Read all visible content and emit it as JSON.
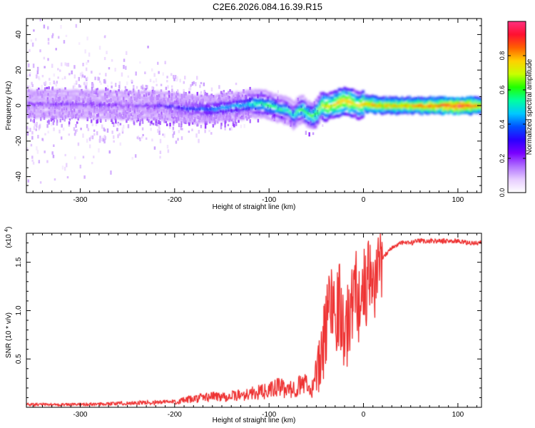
{
  "title": "C2E6.2026.084.16.39.R15",
  "chart_data": [
    {
      "type": "heatmap",
      "xlabel": "Height of straight line (km)",
      "ylabel": "Frequency (Hz)",
      "xlim": [
        -357,
        125
      ],
      "ylim": [
        -49,
        49
      ],
      "x_ticks": [
        {
          "value": -300,
          "label": "-300"
        },
        {
          "value": -200,
          "label": "-200"
        },
        {
          "value": -100,
          "label": "-100"
        },
        {
          "value": 0,
          "label": "0"
        },
        {
          "value": 100,
          "label": "100"
        }
      ],
      "y_ticks": [
        {
          "value": -40,
          "label": "-40"
        },
        {
          "value": -20,
          "label": "-20"
        },
        {
          "value": 0,
          "label": "0"
        },
        {
          "value": 20,
          "label": "20"
        },
        {
          "value": 40,
          "label": "40"
        }
      ],
      "colorbar": {
        "label": "Normalized spectral amplitude",
        "range": [
          0,
          1
        ],
        "ticks": [
          {
            "value": 0.0,
            "label": "0.0"
          },
          {
            "value": 0.2,
            "label": "0.2"
          },
          {
            "value": 0.4,
            "label": "0.4"
          },
          {
            "value": 0.6,
            "label": "0.6"
          },
          {
            "value": 0.8,
            "label": "0.8"
          }
        ],
        "colors": [
          "#ffffff",
          "#e6ccff",
          "#b070ff",
          "#7a00ff",
          "#2a00ff",
          "#0050ff",
          "#00c8ff",
          "#00ffa0",
          "#20ff00",
          "#c8ff00",
          "#ffd000",
          "#ff6000",
          "#ff1030",
          "#ff3080"
        ]
      },
      "ridge": {
        "x": [
          -357,
          -300,
          -250,
          -220,
          -200,
          -180,
          -160,
          -150,
          -130,
          -120,
          -110,
          -100,
          -90,
          -80,
          -75,
          -70,
          -65,
          -60,
          -55,
          -50,
          -45,
          -40,
          -35,
          -30,
          -25,
          -20,
          -15,
          -10,
          -5,
          0,
          20,
          50,
          80,
          100,
          125
        ],
        "freq": [
          1,
          1,
          0,
          0,
          -1,
          -2,
          -2,
          -1,
          0,
          1,
          1,
          0,
          -2,
          -3,
          -6,
          -3,
          -2,
          -5,
          -6,
          -4,
          0,
          -1,
          0,
          1,
          2,
          3,
          2,
          1,
          0,
          1,
          0,
          0,
          0,
          0,
          0
        ],
        "amplitude": [
          0.18,
          0.2,
          0.2,
          0.25,
          0.3,
          0.35,
          0.4,
          0.42,
          0.45,
          0.5,
          0.55,
          0.55,
          0.55,
          0.5,
          0.5,
          0.55,
          0.6,
          0.6,
          0.6,
          0.65,
          0.7,
          0.75,
          0.7,
          0.75,
          0.8,
          0.75,
          0.8,
          0.7,
          0.7,
          0.8,
          0.8,
          0.8,
          0.85,
          0.95,
          0.8
        ]
      }
    },
    {
      "type": "line",
      "xlabel": "Height of straight line (km)",
      "ylabel": "SNR (10 * v/v)",
      "y_multiplier": "(x10",
      "y_multiplier_exp": "4",
      "xlim": [
        -357,
        125
      ],
      "ylim": [
        0,
        1.8
      ],
      "x_ticks": [
        {
          "value": -300,
          "label": "-300"
        },
        {
          "value": -200,
          "label": "-200"
        },
        {
          "value": -100,
          "label": "-100"
        },
        {
          "value": 0,
          "label": "0"
        },
        {
          "value": 100,
          "label": "100"
        }
      ],
      "y_ticks": [
        {
          "value": 0.5,
          "label": "0.5"
        },
        {
          "value": 1.0,
          "label": "1.0"
        },
        {
          "value": 1.5,
          "label": "1.5"
        }
      ],
      "color": "#ee3333",
      "series": [
        {
          "x": [
            -357,
            -300,
            -250,
            -200,
            -180,
            -160,
            -140,
            -120,
            -100,
            -90,
            -80,
            -70,
            -60,
            -55,
            -50,
            -45,
            -40,
            -35,
            -30,
            -25,
            -20,
            -15,
            -10,
            -5,
            0,
            5,
            10,
            15,
            20,
            25,
            30,
            40,
            50,
            60,
            70,
            80,
            90,
            100,
            110,
            125
          ],
          "y": [
            0.02,
            0.02,
            0.03,
            0.04,
            0.06,
            0.08,
            0.08,
            0.1,
            0.12,
            0.15,
            0.12,
            0.15,
            0.18,
            0.2,
            0.3,
            0.5,
            0.8,
            1.2,
            1.0,
            1.1,
            0.7,
            0.9,
            1.3,
            1.1,
            1.2,
            1.3,
            1.25,
            1.45,
            1.55,
            1.6,
            1.65,
            1.7,
            1.7,
            1.72,
            1.72,
            1.72,
            1.72,
            1.72,
            1.7,
            1.7
          ]
        }
      ]
    }
  ]
}
